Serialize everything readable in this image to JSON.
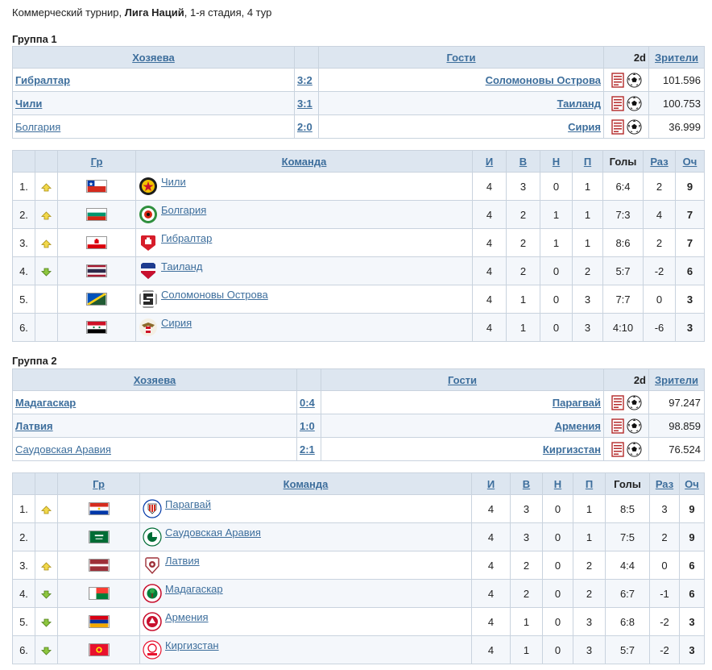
{
  "page": {
    "title_prefix": "Коммерческий турнир,",
    "title_league": "Лига Наций",
    "title_suffix": ", 1-я стадия, 4 тур"
  },
  "match_headers": {
    "home": "Хозяева",
    "away": "Гости",
    "two_d": "2d",
    "attendance": "Зрители"
  },
  "standings_headers": {
    "group": "Гр",
    "team": "Команда",
    "played": "И",
    "won": "В",
    "drawn": "Н",
    "lost": "П",
    "goals": "Голы",
    "diff": "Раз",
    "points": "Оч"
  },
  "groups": [
    {
      "title": "Группа 1",
      "matches": [
        {
          "home": "Гибралтар",
          "score": "3:2",
          "away": "Соломоновы Острова",
          "attendance": "101.596"
        },
        {
          "home": "Чили",
          "score": "3:1",
          "away": "Таиланд",
          "attendance": "100.753"
        },
        {
          "home": "Болгария",
          "score": "2:0",
          "away": "Сирия",
          "attendance": "36.999"
        }
      ],
      "standings": [
        {
          "pos": "1.",
          "team": "Чили",
          "played": "4",
          "won": "3",
          "drawn": "0",
          "lost": "1",
          "goals": "6:4",
          "diff": "2",
          "points": "9"
        },
        {
          "pos": "2.",
          "team": "Болгария",
          "played": "4",
          "won": "2",
          "drawn": "1",
          "lost": "1",
          "goals": "7:3",
          "diff": "4",
          "points": "7"
        },
        {
          "pos": "3.",
          "team": "Гибралтар",
          "played": "4",
          "won": "2",
          "drawn": "1",
          "lost": "1",
          "goals": "8:6",
          "diff": "2",
          "points": "7"
        },
        {
          "pos": "4.",
          "team": "Таиланд",
          "played": "4",
          "won": "2",
          "drawn": "0",
          "lost": "2",
          "goals": "5:7",
          "diff": "-2",
          "points": "6"
        },
        {
          "pos": "5.",
          "team": "Соломоновы Острова",
          "played": "4",
          "won": "1",
          "drawn": "0",
          "lost": "3",
          "goals": "7:7",
          "diff": "0",
          "points": "3"
        },
        {
          "pos": "6.",
          "team": "Сирия",
          "played": "4",
          "won": "1",
          "drawn": "0",
          "lost": "3",
          "goals": "4:10",
          "diff": "-6",
          "points": "3"
        }
      ]
    },
    {
      "title": "Группа 2",
      "matches": [
        {
          "home": "Мадагаскар",
          "score": "0:4",
          "away": "Парагвай",
          "attendance": "97.247"
        },
        {
          "home": "Латвия",
          "score": "1:0",
          "away": "Армения",
          "attendance": "98.859"
        },
        {
          "home": "Саудовская Аравия",
          "score": "2:1",
          "away": "Киргизстан",
          "attendance": "76.524"
        }
      ],
      "standings": [
        {
          "pos": "1.",
          "team": "Парагвай",
          "played": "4",
          "won": "3",
          "drawn": "0",
          "lost": "1",
          "goals": "8:5",
          "diff": "3",
          "points": "9"
        },
        {
          "pos": "2.",
          "team": "Саудовская Аравия",
          "played": "4",
          "won": "3",
          "drawn": "0",
          "lost": "1",
          "goals": "7:5",
          "diff": "2",
          "points": "9"
        },
        {
          "pos": "3.",
          "team": "Латвия",
          "played": "4",
          "won": "2",
          "drawn": "0",
          "lost": "2",
          "goals": "4:4",
          "diff": "0",
          "points": "6"
        },
        {
          "pos": "4.",
          "team": "Мадагаскар",
          "played": "4",
          "won": "2",
          "drawn": "0",
          "lost": "2",
          "goals": "6:7",
          "diff": "-1",
          "points": "6"
        },
        {
          "pos": "5.",
          "team": "Армения",
          "played": "4",
          "won": "1",
          "drawn": "0",
          "lost": "3",
          "goals": "6:8",
          "diff": "-2",
          "points": "3"
        },
        {
          "pos": "6.",
          "team": "Киргизстан",
          "played": "4",
          "won": "1",
          "drawn": "0",
          "lost": "3",
          "goals": "5:7",
          "diff": "-2",
          "points": "3"
        }
      ]
    }
  ]
}
